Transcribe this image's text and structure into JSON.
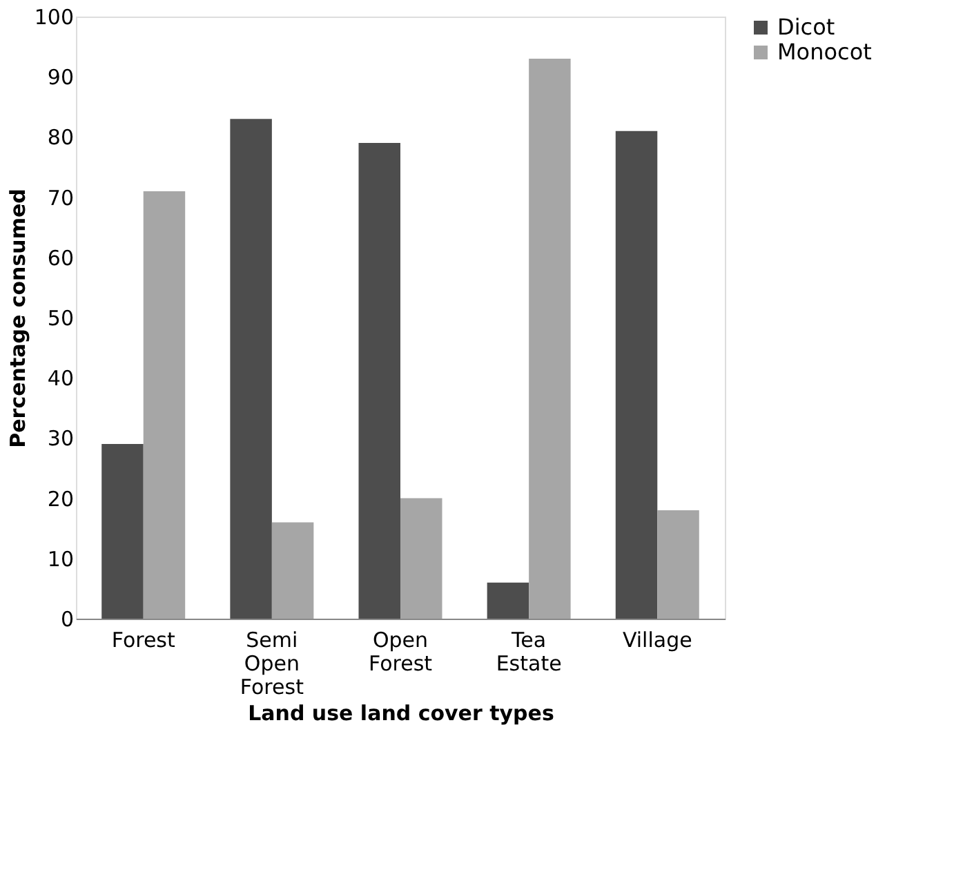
{
  "chart_data": {
    "type": "bar",
    "xlabel": "Land use land cover types",
    "ylabel": "Percentage consumed",
    "categories": [
      "Forest",
      "Semi Open Forest",
      "Open Forest",
      "Tea Estate",
      "Village"
    ],
    "series": [
      {
        "name": "Dicot",
        "color": "#4d4d4d",
        "values": [
          29,
          83,
          79,
          6,
          81
        ]
      },
      {
        "name": "Monocot",
        "color": "#a6a6a6",
        "values": [
          71,
          16,
          20,
          93,
          18
        ]
      }
    ],
    "ylim": [
      0,
      100
    ],
    "yticks": [
      0,
      10,
      20,
      30,
      40,
      50,
      60,
      70,
      80,
      90,
      100
    ],
    "grid": false,
    "legend": "right"
  }
}
